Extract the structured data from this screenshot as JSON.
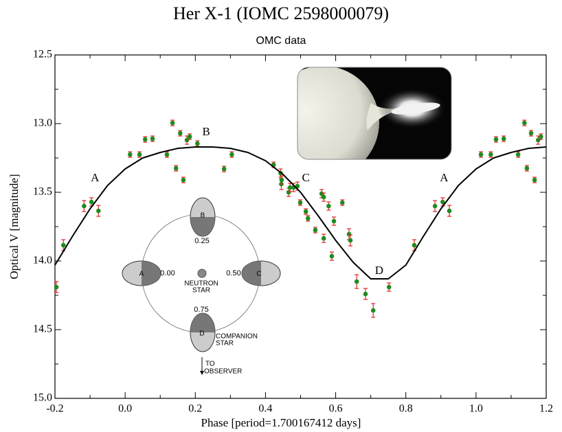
{
  "chart_data": {
    "type": "scatter",
    "title": "Her X-1  (IOMC 2598000079)",
    "subtitle": "OMC data",
    "x_label": "Phase [period=1.700167412 days]",
    "y_label": "Optical V [magnitude]",
    "xlim": [
      -0.2,
      1.2
    ],
    "ylim": [
      12.5,
      15.0
    ],
    "y_inverted": true,
    "xticks": [
      -0.2,
      {
        "value": 0,
        "label": "0.0"
      },
      0.2,
      0.4,
      0.6,
      0.8,
      {
        "value": 1,
        "label": "1.0"
      },
      1.2
    ],
    "yticks": [
      12.5,
      {
        "value": 13,
        "label": "13.0"
      },
      13.5,
      {
        "value": 14,
        "label": "14.0"
      },
      14.5,
      {
        "value": 15,
        "label": "15.0"
      }
    ],
    "grid": false,
    "series": [
      {
        "color": "#1e8c1e",
        "error_color": "#e02828",
        "x": [
          -0.196,
          -0.176,
          -0.117,
          -0.096,
          -0.076,
          0.014,
          0.041,
          0.057,
          0.078,
          0.119,
          0.135,
          0.145,
          0.157,
          0.166,
          0.176,
          0.184,
          0.206,
          0.282,
          0.304,
          0.423,
          0.443,
          0.445,
          0.446,
          0.466,
          0.47,
          0.48,
          0.491,
          0.499,
          0.515,
          0.521,
          0.542,
          0.56,
          0.566,
          0.566,
          0.58,
          0.589,
          0.595,
          0.619,
          0.638,
          0.642,
          0.66,
          0.685,
          0.707,
          0.752,
          0.824,
          0.883,
          0.905,
          0.924,
          1.014,
          1.042,
          1.057,
          1.079,
          1.12,
          1.138,
          1.145,
          1.157,
          1.167,
          1.177,
          1.185
        ],
        "values": [
          14.19,
          13.885,
          13.6,
          13.57,
          13.635,
          13.225,
          13.225,
          13.115,
          13.11,
          13.225,
          12.995,
          13.325,
          13.07,
          13.41,
          13.12,
          13.095,
          13.145,
          13.33,
          13.225,
          13.3,
          13.36,
          13.44,
          13.41,
          13.5,
          13.465,
          13.465,
          13.455,
          13.575,
          13.64,
          13.69,
          13.775,
          13.51,
          13.535,
          13.835,
          13.6,
          13.965,
          13.71,
          13.575,
          13.805,
          13.85,
          14.15,
          14.24,
          14.36,
          14.19,
          13.885,
          13.6,
          13.57,
          13.635,
          13.225,
          13.225,
          13.115,
          13.11,
          13.225,
          12.995,
          13.325,
          13.07,
          13.41,
          13.12,
          13.095
        ],
        "errors": [
          0.04,
          0.04,
          0.04,
          0.03,
          0.04,
          0.02,
          0.02,
          0.02,
          0.02,
          0.02,
          0.02,
          0.02,
          0.02,
          0.02,
          0.03,
          0.02,
          0.02,
          0.02,
          0.02,
          0.02,
          0.03,
          0.04,
          0.03,
          0.03,
          0.03,
          0.03,
          0.03,
          0.02,
          0.02,
          0.02,
          0.02,
          0.03,
          0.03,
          0.03,
          0.03,
          0.03,
          0.03,
          0.02,
          0.04,
          0.04,
          0.05,
          0.04,
          0.05,
          0.03,
          0.04,
          0.04,
          0.03,
          0.04,
          0.02,
          0.02,
          0.02,
          0.02,
          0.02,
          0.02,
          0.02,
          0.02,
          0.02,
          0.03,
          0.02
        ]
      },
      {
        "type": "line",
        "color": "#000000",
        "x": [
          -0.2,
          -0.15,
          -0.1,
          -0.05,
          0,
          0.05,
          0.1,
          0.15,
          0.2,
          0.25,
          0.3,
          0.35,
          0.4,
          0.45,
          0.5,
          0.55,
          0.6,
          0.65,
          0.7,
          0.75,
          0.8,
          0.85,
          0.9,
          0.95,
          1.0,
          1.05,
          1.1,
          1.15,
          1.2
        ],
        "values": [
          14.03,
          13.82,
          13.62,
          13.45,
          13.33,
          13.25,
          13.21,
          13.18,
          13.17,
          13.17,
          13.18,
          13.21,
          13.27,
          13.37,
          13.5,
          13.67,
          13.85,
          14.01,
          14.13,
          14.13,
          14.03,
          13.82,
          13.62,
          13.45,
          13.33,
          13.25,
          13.21,
          13.18,
          13.17
        ]
      }
    ],
    "annotations": [
      {
        "text": "A",
        "x": -0.086,
        "y": 13.4
      },
      {
        "text": "B",
        "x": 0.231,
        "y": 13.065
      },
      {
        "text": "C",
        "x": 0.515,
        "y": 13.4
      },
      {
        "text": "D",
        "x": 0.724,
        "y": 14.075
      },
      {
        "text": "A",
        "x": 0.909,
        "y": 13.4
      }
    ]
  },
  "inset_diagram": {
    "positions": [
      "A",
      "B",
      "C",
      "D"
    ],
    "phases": [
      "0.00",
      "0.25",
      "0.50",
      "0.75"
    ],
    "neutron_star": [
      "NEUTRON",
      "STAR"
    ],
    "companion_star": [
      "COMPANION",
      "STAR"
    ],
    "observer": [
      "TO",
      "OBSERVER"
    ]
  }
}
